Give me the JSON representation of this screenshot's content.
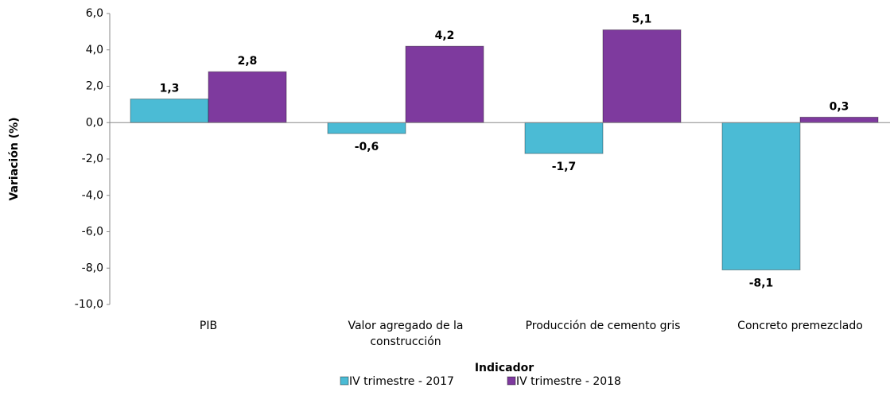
{
  "chart_data": {
    "type": "bar",
    "x_label": "Indicador",
    "y_label": "Variación  (%)",
    "categories": [
      "PIB",
      "Valor agregado de la construcción",
      "Producción de cemento gris",
      "Concreto premezclado"
    ],
    "series": [
      {
        "name": "IV trimestre - 2017",
        "color": "#4bbbd5",
        "values": [
          1.3,
          -0.6,
          -1.7,
          -8.1
        ],
        "value_labels": [
          "1,3",
          "-0,6",
          "-1,7",
          "-8,1"
        ]
      },
      {
        "name": "IV trimestre - 2018",
        "color": "#7e3a9e",
        "values": [
          2.8,
          4.2,
          5.1,
          0.3
        ],
        "value_labels": [
          "2,8",
          "4,2",
          "5,1",
          "0,3"
        ]
      }
    ],
    "ylim": [
      -10,
      6
    ],
    "yticks": [
      {
        "value": -10,
        "label": "-10,0"
      },
      {
        "value": -8,
        "label": "-8,0"
      },
      {
        "value": -6,
        "label": "-6,0"
      },
      {
        "value": -4,
        "label": "-4,0"
      },
      {
        "value": -2,
        "label": "-2,0"
      },
      {
        "value": 0,
        "label": "0,0"
      },
      {
        "value": 2,
        "label": "2,0"
      },
      {
        "value": 4,
        "label": "4,0"
      },
      {
        "value": 6,
        "label": "6,0"
      }
    ],
    "grid": false,
    "legend": "bottom"
  }
}
